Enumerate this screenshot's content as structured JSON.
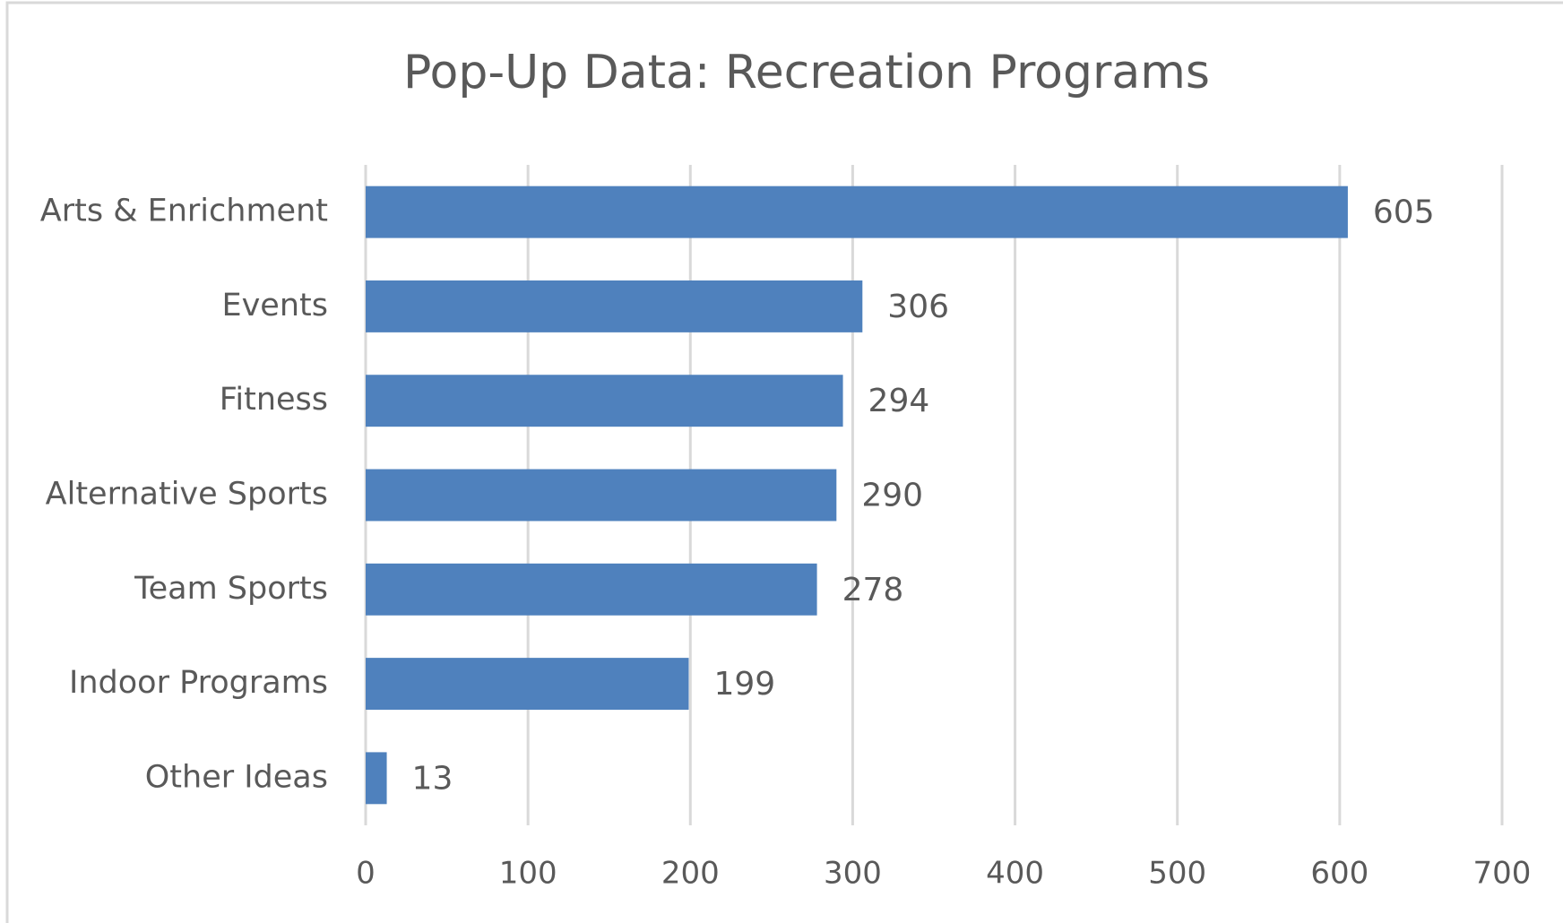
{
  "chart_data": {
    "type": "bar",
    "orientation": "horizontal",
    "title": "Pop-Up Data: Recreation Programs",
    "categories": [
      "Arts & Enrichment",
      "Events",
      "Fitness",
      "Alternative Sports",
      "Team Sports",
      "Indoor Programs",
      "Other Ideas"
    ],
    "values": [
      605,
      306,
      294,
      290,
      278,
      199,
      13
    ],
    "color": "#4f81bd",
    "xlim": [
      0,
      700
    ],
    "xticks": [
      0,
      100,
      200,
      300,
      400,
      500,
      600,
      700
    ],
    "grid": true,
    "data_labels": true
  }
}
